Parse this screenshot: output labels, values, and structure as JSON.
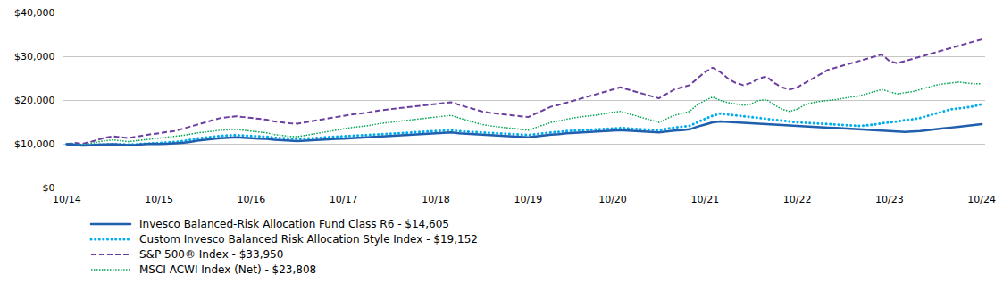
{
  "chart_data": {
    "type": "line",
    "categories": [
      "10/14",
      null,
      null,
      null,
      null,
      null,
      null,
      null,
      null,
      null,
      null,
      null,
      "10/15",
      null,
      null,
      null,
      null,
      null,
      null,
      null,
      null,
      null,
      null,
      null,
      "10/16",
      null,
      null,
      null,
      null,
      null,
      null,
      null,
      null,
      null,
      null,
      null,
      "10/17",
      null,
      null,
      null,
      null,
      null,
      null,
      null,
      null,
      null,
      null,
      null,
      "10/18",
      null,
      null,
      null,
      null,
      null,
      null,
      null,
      null,
      null,
      null,
      null,
      "10/19",
      null,
      null,
      null,
      null,
      null,
      null,
      null,
      null,
      null,
      null,
      "10/20",
      null,
      null,
      null,
      null,
      null,
      null,
      null,
      null,
      null,
      null,
      null,
      "10/21",
      null,
      null,
      null,
      null,
      null,
      null,
      null,
      null,
      null,
      null,
      null,
      "10/22",
      null,
      null,
      null,
      null,
      null,
      null,
      null,
      null,
      null,
      null,
      null,
      "10/23",
      null,
      null,
      null,
      null,
      null,
      null,
      null,
      null,
      null,
      null,
      null,
      "10/24"
    ],
    "series": [
      {
        "name": "Invesco Balanced-Risk Allocation Fund Class R6 - $14,605",
        "color": "#1F5FAD",
        "line_style": "solid",
        "values": [
          10000,
          9850,
          9700,
          9750,
          9900,
          9950,
          10000,
          9900,
          9800,
          9850,
          10000,
          10100,
          10050,
          10100,
          10200,
          10300,
          10500,
          10800,
          11000,
          11200,
          11400,
          11500,
          11600,
          11500,
          11400,
          11300,
          11200,
          11000,
          10900,
          10800,
          10700,
          10800,
          10900,
          11000,
          11100,
          11200,
          11300,
          11400,
          11500,
          11600,
          11700,
          11800,
          11900,
          12000,
          12100,
          12200,
          12300,
          12400,
          12500,
          12600,
          12700,
          12500,
          12400,
          12300,
          12200,
          12100,
          12000,
          11900,
          11800,
          11700,
          11600,
          11800,
          12000,
          12200,
          12300,
          12500,
          12600,
          12700,
          12800,
          12900,
          13000,
          13100,
          13200,
          13100,
          13000,
          12900,
          12800,
          12700,
          12900,
          13100,
          13200,
          13400,
          14000,
          14500,
          15000,
          15200,
          15100,
          15000,
          14900,
          14800,
          14700,
          14600,
          14500,
          14400,
          14300,
          14200,
          14100,
          14000,
          13900,
          13800,
          13700,
          13600,
          13500,
          13400,
          13300,
          13200,
          13100,
          13000,
          12900,
          12800,
          12900,
          13000,
          13200,
          13400,
          13600,
          13800,
          14000,
          14200,
          14400,
          14605
        ]
      },
      {
        "name": "Custom Invesco Balanced Risk Allocation Style Index - $19,152",
        "color": "#00AEEF",
        "line_style": "dotted",
        "values": [
          10000,
          9900,
          9800,
          9850,
          9900,
          9950,
          10000,
          9950,
          9900,
          9950,
          10100,
          10200,
          10300,
          10400,
          10500,
          10700,
          11000,
          11300,
          11500,
          11700,
          11900,
          12000,
          12100,
          12000,
          11900,
          11800,
          11700,
          11500,
          11400,
          11300,
          11200,
          11300,
          11400,
          11500,
          11600,
          11700,
          11800,
          11900,
          12000,
          12100,
          12200,
          12300,
          12400,
          12500,
          12600,
          12700,
          12800,
          12900,
          13000,
          13100,
          13200,
          13000,
          12900,
          12800,
          12700,
          12600,
          12500,
          12400,
          12300,
          12200,
          12100,
          12300,
          12500,
          12700,
          12800,
          13000,
          13100,
          13200,
          13300,
          13400,
          13500,
          13600,
          13700,
          13600,
          13500,
          13400,
          13300,
          13200,
          13500,
          13800,
          14000,
          14200,
          15000,
          15800,
          16500,
          17000,
          16800,
          16600,
          16400,
          16200,
          16000,
          15800,
          15600,
          15400,
          15200,
          15000,
          14900,
          14800,
          14700,
          14600,
          14500,
          14400,
          14300,
          14200,
          14300,
          14500,
          14800,
          15000,
          15200,
          15500,
          15700,
          16000,
          16500,
          17000,
          17500,
          18000,
          18200,
          18400,
          18700,
          19152
        ]
      },
      {
        "name": "S&P 500® Index - $33,950",
        "color": "#6B3FA0",
        "line_style": "dashed",
        "values": [
          10000,
          10300,
          10100,
          10500,
          11000,
          11500,
          11800,
          11600,
          11400,
          11700,
          12000,
          12300,
          12500,
          12800,
          13000,
          13500,
          14000,
          14500,
          15000,
          15500,
          16000,
          16200,
          16400,
          16200,
          16000,
          15800,
          15600,
          15200,
          15000,
          14800,
          14700,
          15000,
          15300,
          15600,
          15900,
          16200,
          16500,
          16800,
          17000,
          17200,
          17500,
          17800,
          18000,
          18200,
          18400,
          18600,
          18800,
          19000,
          19200,
          19400,
          19600,
          19000,
          18500,
          18000,
          17500,
          17200,
          17000,
          16800,
          16600,
          16400,
          16200,
          17000,
          17800,
          18600,
          19000,
          19500,
          20000,
          20500,
          21000,
          21500,
          22000,
          22500,
          23000,
          22500,
          22000,
          21500,
          21000,
          20500,
          21500,
          22500,
          23000,
          23500,
          25000,
          26500,
          27500,
          26500,
          25000,
          24000,
          23500,
          24000,
          25000,
          25500,
          24000,
          23000,
          22500,
          23000,
          24000,
          25000,
          26000,
          27000,
          27500,
          28000,
          28500,
          29000,
          29500,
          30000,
          30500,
          29000,
          28500,
          29000,
          29500,
          30000,
          30500,
          31000,
          31500,
          32000,
          32500,
          33000,
          33500,
          33950
        ]
      },
      {
        "name": "MSCI ACWI Index (Net) - $23,808",
        "color": "#00A651",
        "line_style": "densely-dotted",
        "values": [
          10000,
          10200,
          9900,
          10100,
          10500,
          10800,
          11000,
          10800,
          10600,
          10800,
          11000,
          11200,
          11400,
          11600,
          11800,
          12000,
          12300,
          12600,
          12800,
          13000,
          13200,
          13300,
          13400,
          13200,
          13000,
          12800,
          12600,
          12200,
          12000,
          11800,
          11700,
          12000,
          12300,
          12600,
          12900,
          13200,
          13500,
          13800,
          14000,
          14200,
          14500,
          14800,
          15000,
          15200,
          15400,
          15600,
          15800,
          16000,
          16200,
          16400,
          16600,
          16000,
          15500,
          15000,
          14500,
          14200,
          14000,
          13800,
          13600,
          13400,
          13200,
          13800,
          14400,
          15000,
          15300,
          15700,
          16000,
          16300,
          16500,
          16700,
          17000,
          17300,
          17500,
          17000,
          16500,
          16000,
          15500,
          15000,
          15800,
          16600,
          17000,
          17500,
          19000,
          20000,
          20800,
          20000,
          19500,
          19200,
          18900,
          19200,
          20000,
          20200,
          19000,
          18000,
          17500,
          18000,
          19000,
          19500,
          19800,
          20000,
          20200,
          20500,
          20800,
          21000,
          21500,
          22000,
          22500,
          22000,
          21500,
          21800,
          22000,
          22500,
          23000,
          23500,
          23800,
          24000,
          24200,
          24000,
          23808,
          23808
        ]
      }
    ],
    "ylim": [
      0,
      40000
    ],
    "yticks": [
      {
        "value": 0,
        "label": "$0"
      },
      {
        "value": 10000,
        "label": "$10,000"
      },
      {
        "value": 20000,
        "label": "$20,000"
      },
      {
        "value": 30000,
        "label": "$30,000"
      },
      {
        "value": 40000,
        "label": "$40,000"
      }
    ],
    "grid": true,
    "legend": "lower left"
  }
}
